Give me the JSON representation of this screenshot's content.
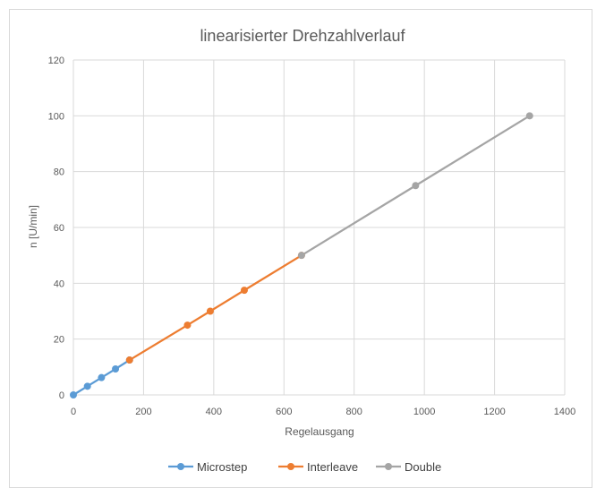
{
  "chart_data": {
    "type": "line",
    "title": "linearisierter Drehzahlverlauf",
    "xlabel": "Regelausgang",
    "ylabel": "n [U/min]",
    "xlim": [
      0,
      1400
    ],
    "ylim": [
      0,
      120
    ],
    "x_ticks": [
      "0",
      "200",
      "400",
      "600",
      "800",
      "1000",
      "1200",
      "1400"
    ],
    "y_ticks": [
      "0",
      "20",
      "40",
      "60",
      "80",
      "100",
      "120"
    ],
    "grid": true,
    "legend_position": "bottom",
    "series": [
      {
        "name": "Microstep",
        "color": "#5b9bd5",
        "x": [
          0,
          40,
          80,
          120,
          160
        ],
        "y": [
          0,
          3.1,
          6.2,
          9.3,
          12.5
        ]
      },
      {
        "name": "Interleave",
        "color": "#ed7d31",
        "x": [
          160,
          325,
          390,
          487,
          650
        ],
        "y": [
          12.5,
          25,
          30,
          37.5,
          50
        ]
      },
      {
        "name": "Double",
        "color": "#a5a5a5",
        "x": [
          650,
          975,
          1300
        ],
        "y": [
          50,
          75,
          100
        ]
      }
    ]
  }
}
